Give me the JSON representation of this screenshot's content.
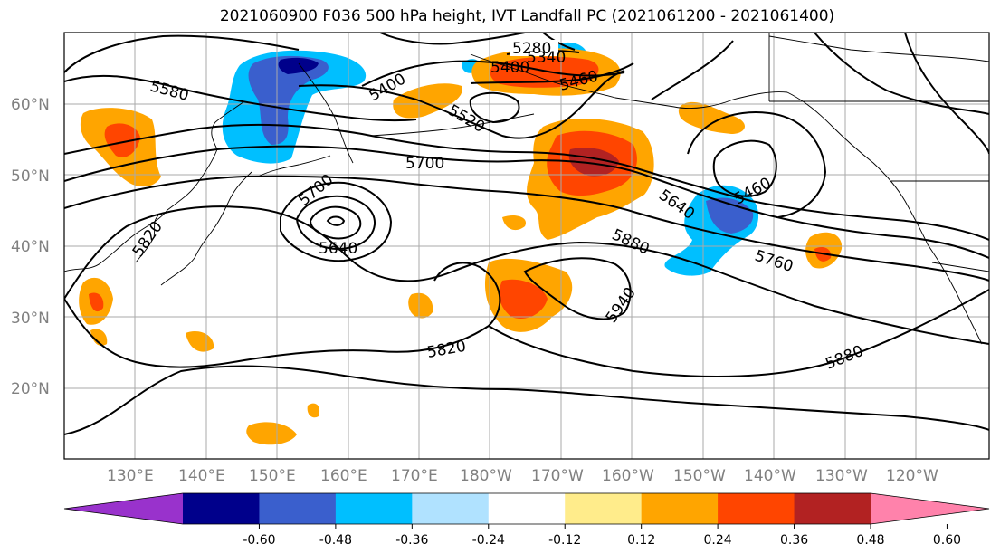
{
  "title": "2021060900 F036 500 hPa height, IVT Landfall PC (2021061200 - 2021061400)",
  "lat_labels": [
    "20°N",
    "30°N",
    "40°N",
    "50°N",
    "60°N"
  ],
  "lon_labels": [
    "130°E",
    "140°E",
    "150°E",
    "160°E",
    "170°E",
    "180°W",
    "170°W",
    "160°W",
    "150°W",
    "140°W",
    "130°W",
    "120°W"
  ],
  "contour_labels": [
    "5280",
    "5340",
    "5400",
    "5460",
    "5580",
    "5400",
    "5520",
    "5700",
    "5700",
    "5640",
    "5820",
    "5820",
    "5880",
    "5940",
    "5640",
    "5460",
    "5760",
    "5880"
  ],
  "colorbar": {
    "colors": [
      "#9932cc",
      "#00008b",
      "#3a5fcd",
      "#00bfff",
      "#b0e2ff",
      "#ffffff",
      "#ffec8b",
      "#ffa500",
      "#ff4500",
      "#b22222",
      "#ff82ab"
    ],
    "tick_labels": [
      "-0.60",
      "-0.48",
      "-0.36",
      "-0.24",
      "-0.12",
      "0.12",
      "0.24",
      "0.36",
      "0.48",
      "0.60"
    ]
  }
}
